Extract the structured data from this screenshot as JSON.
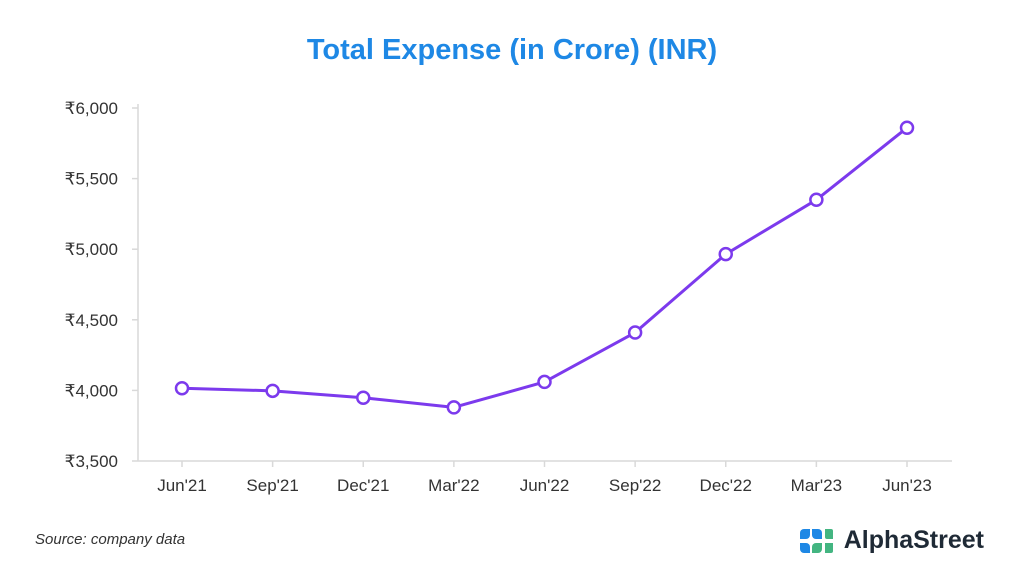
{
  "header": {
    "title": "Total Expense (in Crore) (INR)"
  },
  "footer": {
    "source": "Source: company data",
    "brand": "AlphaStreet"
  },
  "icons": {
    "logo": "alphastreet-logo-icon"
  },
  "colors": {
    "title": "#1e88e5",
    "line": "#7c3aed",
    "marker_fill": "#ffffff",
    "axis": "#d9d9d9",
    "tick_text": "#333333",
    "logo_blue": "#1e88e5",
    "logo_green": "#43b581"
  },
  "chart_data": {
    "type": "line",
    "title": "Total Expense (in Crore) (INR)",
    "xlabel": "",
    "ylabel": "",
    "categories": [
      "Jun'21",
      "Sep'21",
      "Dec'21",
      "Mar'22",
      "Jun'22",
      "Sep'22",
      "Dec'22",
      "Mar'23",
      "Jun'23"
    ],
    "series": [
      {
        "name": "Total Expense",
        "values": [
          4015,
          3997,
          3948,
          3880,
          4060,
          4410,
          4965,
          5350,
          5860
        ]
      }
    ],
    "ylim": [
      3500,
      6000
    ],
    "yticks": [
      3500,
      4000,
      4500,
      5000,
      5500,
      6000
    ],
    "ytick_labels": [
      "₹3,500",
      "₹4,000",
      "₹4,500",
      "₹5,000",
      "₹5,500",
      "₹6,000"
    ],
    "grid": false,
    "legend": "none"
  }
}
